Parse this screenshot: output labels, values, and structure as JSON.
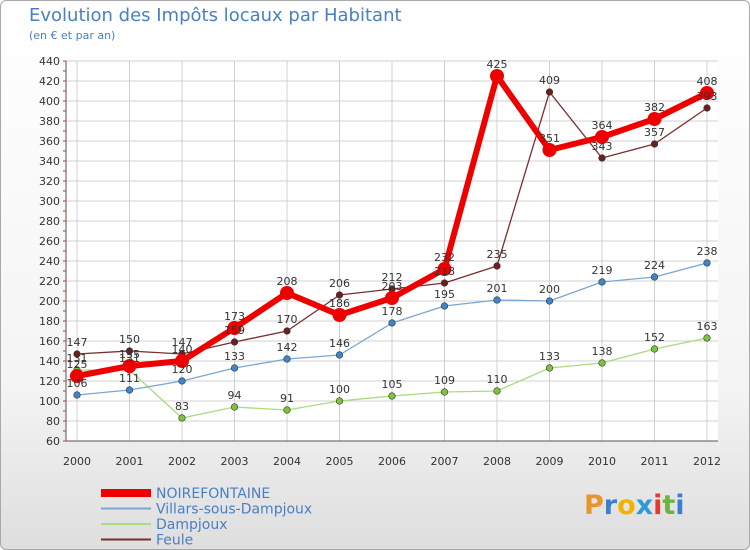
{
  "title": "Evolution des Impôts locaux par Habitant",
  "subtitle": "(en € et par an)",
  "logo": {
    "letters": [
      "P",
      "r",
      "o",
      "x",
      "i",
      "t",
      "i"
    ],
    "colors": [
      "#e8962a",
      "#3b7fd0",
      "#f2b300",
      "#2d9bd8",
      "#e23b2e",
      "#6cb33f",
      "#3b7fd0"
    ]
  },
  "chart_data": {
    "type": "line",
    "title": "Evolution des Impôts locaux par Habitant",
    "ylabel": "(en € et par an)",
    "xlabel": "",
    "x": [
      "2000",
      "2001",
      "2002",
      "2003",
      "2004",
      "2005",
      "2006",
      "2007",
      "2008",
      "2009",
      "2010",
      "2011",
      "2012"
    ],
    "ylim": [
      60,
      440
    ],
    "yticks": [
      60,
      80,
      100,
      120,
      140,
      160,
      180,
      200,
      220,
      240,
      260,
      280,
      300,
      320,
      340,
      360,
      380,
      400,
      420,
      440
    ],
    "grid": true,
    "legend_position": "bottom-left",
    "series": [
      {
        "name": "Feule",
        "color": "#7a2e2e",
        "dot": "#6b1f1f",
        "width": 1.3,
        "values": [
          147,
          150,
          147,
          159,
          170,
          206,
          212,
          218,
          235,
          409,
          343,
          357,
          393
        ]
      },
      {
        "name": "Dampjoux",
        "color": "#a8dc7c",
        "dot": "#7cc43a",
        "width": 1.3,
        "values": [
          131,
          131,
          83,
          94,
          91,
          100,
          105,
          109,
          110,
          133,
          138,
          152,
          163
        ]
      },
      {
        "name": "Villars-sous-Dampjoux",
        "color": "#7aa6d0",
        "dot": "#3e86c9",
        "width": 1.3,
        "values": [
          106,
          111,
          120,
          133,
          142,
          146,
          178,
          195,
          201,
          200,
          219,
          224,
          238
        ]
      },
      {
        "name": "NOIREFONTAINE",
        "color": "#ee0000",
        "dot": "#ee0000",
        "width": 6,
        "values": [
          125,
          135,
          140,
          173,
          208,
          186,
          203,
          232,
          425,
          351,
          364,
          382,
          408
        ]
      }
    ]
  }
}
